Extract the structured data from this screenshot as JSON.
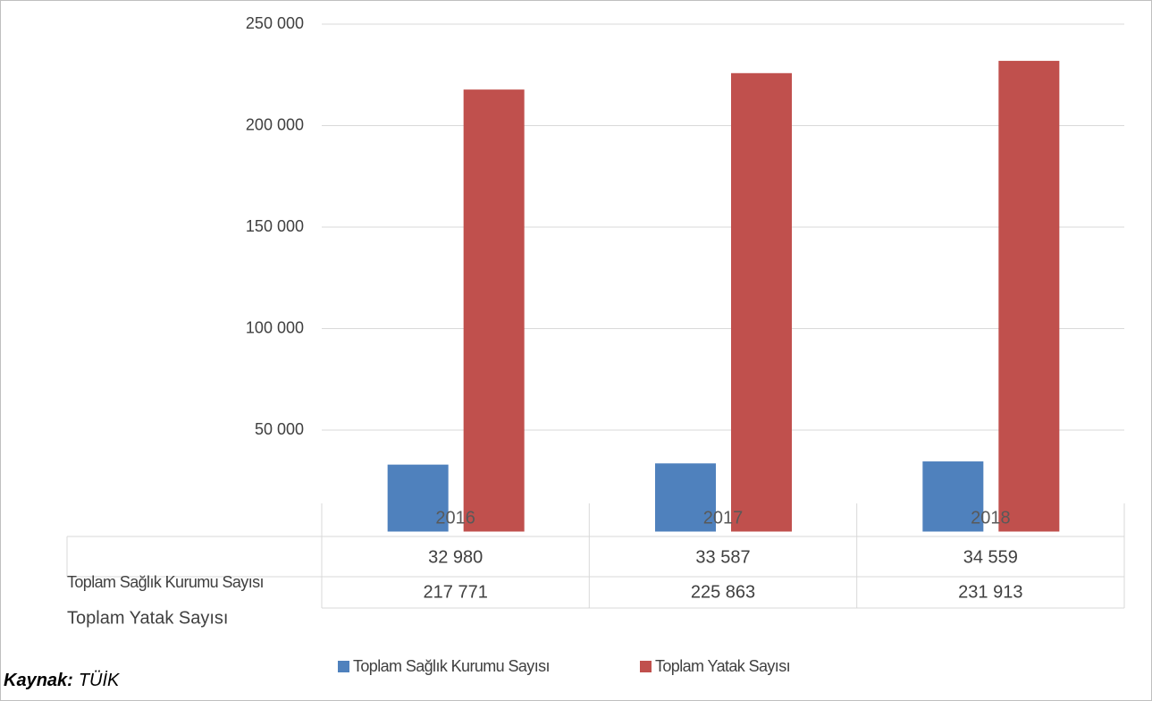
{
  "chart_data": {
    "type": "bar",
    "categories": [
      "2016",
      "2017",
      "2018"
    ],
    "series": [
      {
        "name": "Toplam Sağlık Kurumu Sayısı",
        "color": "#4f81bd",
        "values": [
          32980,
          33587,
          34559
        ],
        "value_labels": [
          "32 980",
          "33 587",
          "34 559"
        ]
      },
      {
        "name": "Toplam Yatak Sayısı",
        "color": "#c0504d",
        "values": [
          217771,
          225863,
          231913
        ],
        "value_labels": [
          "217 771",
          "225 863",
          "231 913"
        ]
      }
    ],
    "ylim": [
      0,
      250000
    ],
    "yticks": [
      {
        "value": 50000,
        "label": "50 000"
      },
      {
        "value": 100000,
        "label": "100 000"
      },
      {
        "value": 150000,
        "label": "150 000"
      },
      {
        "value": 200000,
        "label": "200 000"
      },
      {
        "value": 250000,
        "label": "250 000"
      }
    ],
    "grid": true,
    "source_label": "Kaynak:",
    "source": "TÜİK"
  }
}
